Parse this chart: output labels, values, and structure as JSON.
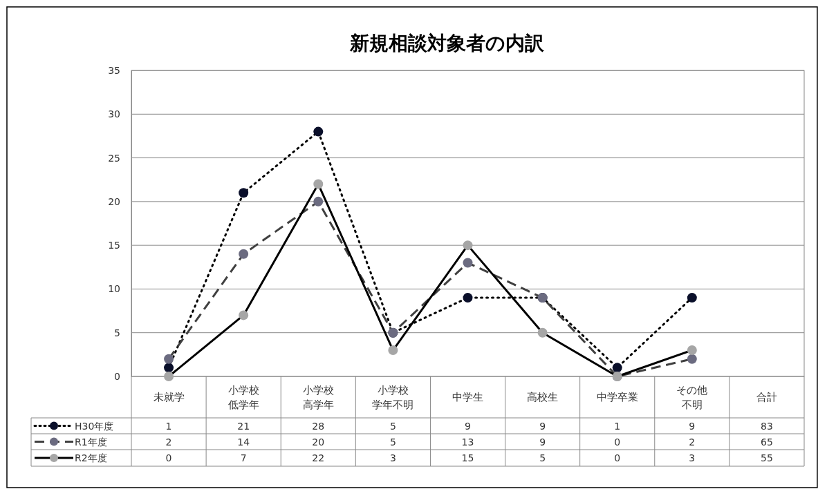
{
  "chart_data": {
    "type": "line",
    "title": "新規相談対象者の内訳",
    "categories": [
      "未就学",
      "小学校低学年",
      "小学校高学年",
      "小学校学年不明",
      "中学生",
      "高校生",
      "中学卒業",
      "その他不明",
      "合計"
    ],
    "series": [
      {
        "name": "H30年度",
        "color": "#000000",
        "colors": [
          "#0a0f2a",
          "#0a0f2a",
          "#0a0f2a",
          "#0a0f2a",
          "#0a0f2a",
          "#0a0f2a",
          "#0a0f2a",
          "#0a0f2a",
          "#0a0f2a"
        ],
        "line_style": "dotted",
        "values": [
          1,
          21,
          28,
          5,
          9,
          9,
          1,
          9,
          null
        ],
        "value_labels": [
          "1",
          "21",
          "28",
          "5",
          "9",
          "9",
          "1",
          "9",
          "83"
        ]
      },
      {
        "name": "R1年度",
        "color": "#404040",
        "colors": [
          "#6b6b80",
          "#6b6b80",
          "#6b6b80",
          "#6b6b80",
          "#6b6b80",
          "#6b6b80",
          "#6b6b80",
          "#6b6b80",
          "#6b6b80"
        ],
        "line_style": "dashed",
        "values": [
          2,
          14,
          20,
          5,
          13,
          9,
          0,
          2,
          null
        ],
        "value_labels": [
          "2",
          "14",
          "20",
          "5",
          "13",
          "9",
          "0",
          "2",
          "65"
        ]
      },
      {
        "name": "R2年度",
        "color": "#000000",
        "colors": [
          "#a6a6a6",
          "#a6a6a6",
          "#a6a6a6",
          "#a6a6a6",
          "#a6a6a6",
          "#a6a6a6",
          "#a6a6a6",
          "#a6a6a6",
          "#a6a6a6"
        ],
        "line_style": "solid",
        "values": [
          0,
          7,
          22,
          3,
          15,
          5,
          0,
          3,
          null
        ],
        "value_labels": [
          "0",
          "7",
          "22",
          "3",
          "15",
          "5",
          "0",
          "3",
          "55"
        ]
      }
    ],
    "ylim": [
      0,
      35
    ],
    "yticks": [
      0,
      5,
      10,
      15,
      20,
      25,
      30,
      35
    ],
    "grid": "y",
    "marker": "circle",
    "legend": "bottom left"
  }
}
